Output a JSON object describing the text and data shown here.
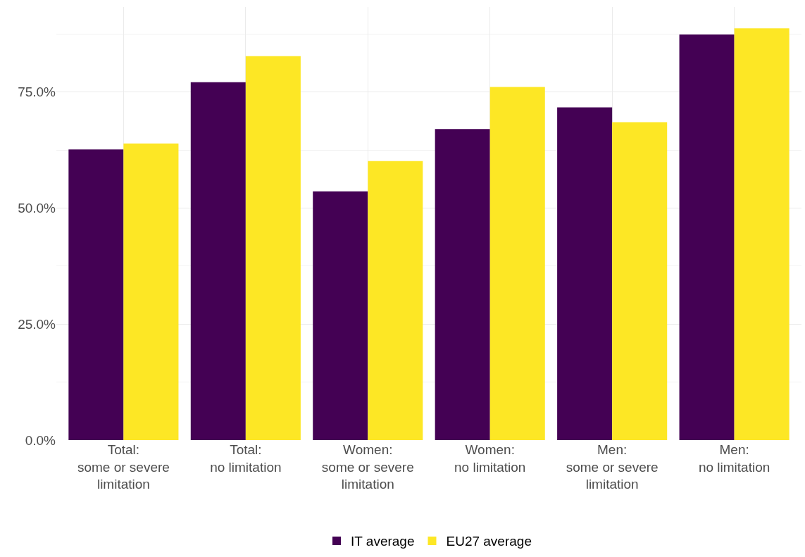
{
  "chart_data": {
    "type": "bar",
    "categories": [
      "Total:\nsome or severe\nlimitation",
      "Total:\nno limitation",
      "Women:\nsome or severe\nlimitation",
      "Women:\nno limitation",
      "Men:\nsome or severe\nlimitation",
      "Men:\nno limitation"
    ],
    "series": [
      {
        "name": "IT average",
        "color": "#440154",
        "values": [
          62.6,
          77.1,
          53.6,
          67.0,
          71.7,
          87.4
        ]
      },
      {
        "name": "EU27 average",
        "color": "#fde725",
        "values": [
          63.9,
          82.7,
          60.1,
          76.1,
          68.5,
          88.7
        ]
      }
    ],
    "ylim": [
      0,
      93.3
    ],
    "yticks": [
      {
        "value": 0,
        "label": "0.0%"
      },
      {
        "value": 25,
        "label": "25.0%"
      },
      {
        "value": 50,
        "label": "50.0%"
      },
      {
        "value": 75,
        "label": "75.0%"
      }
    ],
    "grid": true,
    "legend": "bottom"
  }
}
